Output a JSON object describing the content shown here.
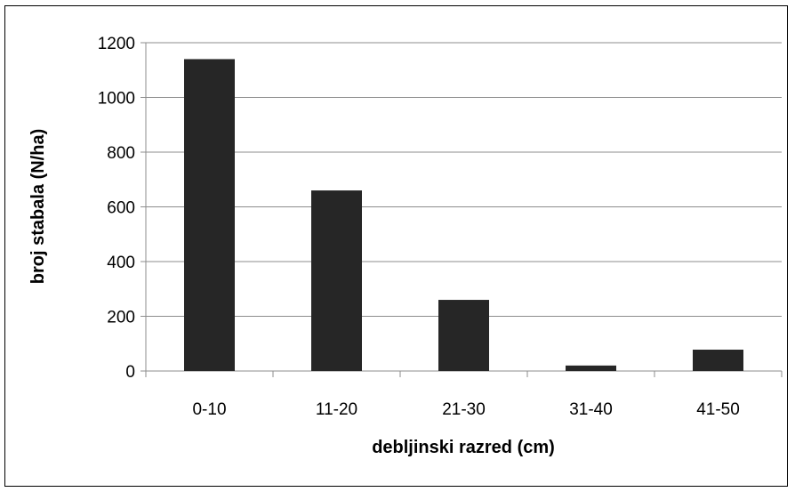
{
  "chart_data": {
    "type": "bar",
    "title": "",
    "xlabel": "debljinski razred (cm)",
    "ylabel": "broj stabala (N/ha)",
    "categories": [
      "0-10",
      "11-20",
      "21-30",
      "31-40",
      "41-50"
    ],
    "values": [
      1140,
      660,
      260,
      20,
      78
    ],
    "ylim": [
      0,
      1200
    ],
    "yticks": [
      0,
      200,
      400,
      600,
      800,
      1000,
      1200
    ],
    "grid": true,
    "legend": "none",
    "bar_color": "#262626",
    "grid_color": "#8c8c8c"
  }
}
